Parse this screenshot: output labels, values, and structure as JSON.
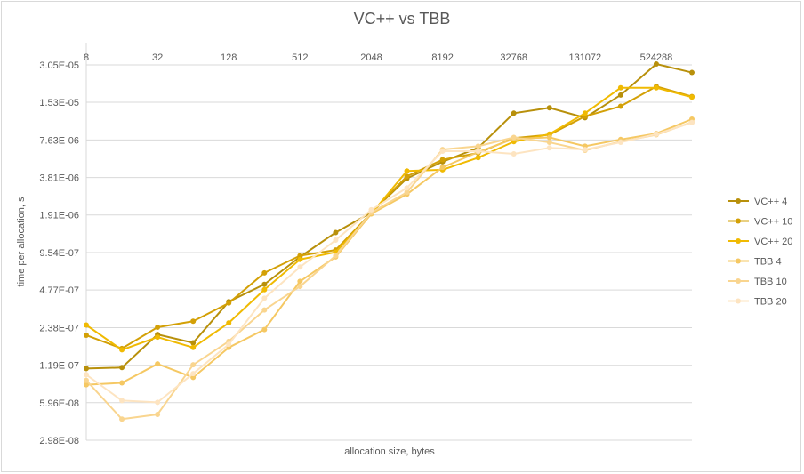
{
  "chart_data": {
    "type": "line",
    "title": "VC++ vs TBB",
    "xlabel": "allocation size, bytes",
    "ylabel": "time per allocation, s",
    "y_scale": "log2",
    "ylim": [
      2.98e-08,
      3.05e-05
    ],
    "y_ticks": [
      "2.98E-08",
      "5.96E-08",
      "1.19E-07",
      "2.38E-07",
      "4.77E-07",
      "9.54E-07",
      "1.91E-06",
      "3.81E-06",
      "7.63E-06",
      "1.53E-05",
      "3.05E-05"
    ],
    "x_scale": "log2",
    "x": [
      8,
      16,
      32,
      64,
      128,
      256,
      512,
      1024,
      2048,
      4096,
      8192,
      16384,
      32768,
      65536,
      131072,
      262144,
      524288,
      1048576
    ],
    "x_ticks": [
      "8",
      "32",
      "128",
      "512",
      "2048",
      "8192",
      "32768",
      "131072",
      "524288"
    ],
    "grid": "horizontal",
    "legend_position": "right",
    "series": [
      {
        "name": "VC++ 4",
        "color": "#b8900b",
        "values": [
          1.12e-07,
          1.14e-07,
          2.1e-07,
          1.8e-07,
          3.85e-07,
          5.3e-07,
          8.8e-07,
          1.38e-06,
          2e-06,
          3.75e-06,
          5.1e-06,
          6.6e-06,
          1.25e-05,
          1.38e-05,
          1.15e-05,
          1.75e-05,
          3.1e-05,
          2.65e-05
        ]
      },
      {
        "name": "VC++ 10",
        "color": "#d3a006",
        "values": [
          2.07e-07,
          1.62e-07,
          2.4e-07,
          2.68e-07,
          3.75e-07,
          6.55e-07,
          9e-07,
          1e-06,
          1.98e-06,
          3.9e-06,
          5.3e-06,
          6e-06,
          7.9e-06,
          8.4e-06,
          1.18e-05,
          1.42e-05,
          2.05e-05,
          1.7e-05
        ]
      },
      {
        "name": "VC++ 20",
        "color": "#f0ba02",
        "values": [
          2.5e-07,
          1.58e-07,
          2e-07,
          1.65e-07,
          2.6e-07,
          4.8e-07,
          8.4e-07,
          9.6e-07,
          1.95e-06,
          4.3e-06,
          4.4e-06,
          5.5e-06,
          7.4e-06,
          8.5e-06,
          1.25e-05,
          2e-05,
          2e-05,
          1.68e-05
        ]
      },
      {
        "name": "TBB 4",
        "color": "#f5c863",
        "values": [
          8.3e-08,
          8.6e-08,
          1.22e-07,
          9.5e-08,
          1.65e-07,
          2.3e-07,
          5.6e-07,
          8.8e-07,
          1.95e-06,
          2.8e-06,
          4.6e-06,
          6.1e-06,
          7.8e-06,
          8e-06,
          6.8e-06,
          7.7e-06,
          8.6e-06,
          1.12e-05
        ]
      },
      {
        "name": "TBB 10",
        "color": "#f9d58f",
        "values": [
          9e-08,
          4.4e-08,
          4.8e-08,
          1.2e-07,
          1.85e-07,
          3.3e-07,
          5.1e-07,
          9e-07,
          2e-06,
          2.9e-06,
          6.4e-06,
          6.8e-06,
          8e-06,
          7.3e-06,
          6.3e-06,
          7.4e-06,
          8.4e-06,
          1.06e-05
        ]
      },
      {
        "name": "TBB 20",
        "color": "#fde4c1",
        "values": [
          1e-07,
          6.2e-08,
          6e-08,
          1.02e-07,
          1.75e-07,
          4.1e-07,
          7.3e-07,
          1.2e-06,
          2.1e-06,
          3.15e-06,
          6.2e-06,
          6.2e-06,
          5.9e-06,
          6.6e-06,
          6.4e-06,
          7.3e-06,
          8.5e-06,
          1.05e-05
        ]
      }
    ]
  }
}
